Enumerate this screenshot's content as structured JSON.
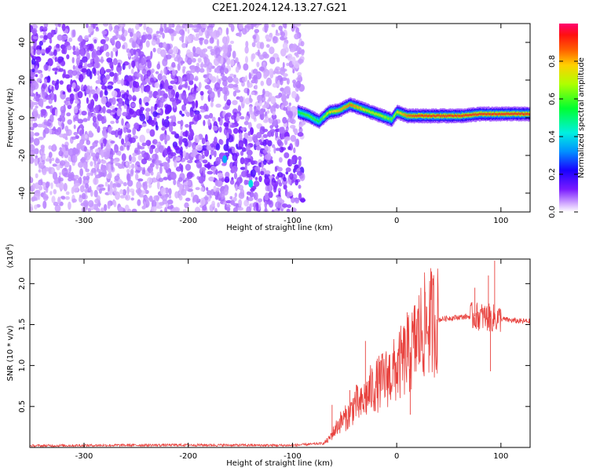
{
  "title": "C2E1.2024.124.13.27.G21",
  "chart_data": [
    {
      "type": "heatmap",
      "xlabel": "Height of straight line (km)",
      "ylabel": "Frequency (Hz)",
      "xlim": [
        -352,
        128
      ],
      "ylim": [
        -50,
        50
      ],
      "x_ticks": [
        -300,
        -200,
        -100,
        0,
        100
      ],
      "x_tick_labels": [
        "-300",
        "-200",
        "-100",
        "0",
        "100"
      ],
      "y_ticks": [
        -40,
        -20,
        0,
        20,
        40
      ],
      "y_tick_labels": [
        "-40",
        "-20",
        "0",
        "20",
        "40"
      ],
      "noise_region": {
        "x_range": [
          -352,
          -90
        ],
        "y_range": [
          -50,
          50
        ],
        "typical_amplitude": 0.1
      },
      "signal_ridge": {
        "x": [
          -95,
          -85,
          -75,
          -65,
          -55,
          -45,
          -35,
          -25,
          -15,
          -5,
          0,
          10,
          20,
          40,
          60,
          80,
          100,
          128
        ],
        "frequency": [
          3,
          1,
          -2,
          3,
          4,
          7,
          5,
          3,
          1,
          -1,
          3,
          1,
          1,
          1,
          1,
          2,
          2,
          2
        ],
        "amplitude": [
          0.55,
          0.6,
          0.55,
          0.75,
          0.8,
          0.85,
          0.8,
          0.7,
          0.7,
          0.6,
          0.75,
          0.85,
          0.9,
          0.9,
          0.9,
          0.9,
          0.9,
          0.9
        ]
      },
      "isolated_features": [
        {
          "x": -165,
          "frequency": -22,
          "amplitude": 0.35
        },
        {
          "x": -140,
          "frequency": -35,
          "amplitude": 0.4
        }
      ],
      "grid": false
    },
    {
      "type": "line",
      "xlabel": "Height of straight line (km)",
      "ylabel": "SNR (10 * v/v)",
      "y_multiplier": "(x10",
      "y_multiplier_exp": "4",
      "y_multiplier_close": ")",
      "xlim": [
        -352,
        128
      ],
      "ylim": [
        0,
        23000
      ],
      "x_ticks": [
        -300,
        -200,
        -100,
        0,
        100
      ],
      "x_tick_labels": [
        "-300",
        "-200",
        "-100",
        "0",
        "100"
      ],
      "y_ticks": [
        5000,
        10000,
        15000,
        20000
      ],
      "y_tick_labels": [
        "0.5",
        "1.0",
        "1.5",
        "2.0"
      ],
      "series": [
        {
          "color": "#e8423e",
          "x": [
            -352,
            -300,
            -200,
            -100,
            -70,
            -65,
            -60,
            -55,
            -50,
            -45,
            -40,
            -35,
            -30,
            -25,
            -20,
            -15,
            -10,
            -5,
            0,
            5,
            10,
            15,
            20,
            25,
            30,
            35,
            40,
            45,
            50,
            60,
            70,
            80,
            90,
            100,
            110,
            120,
            128
          ],
          "y": [
            200,
            250,
            300,
            250,
            500,
            1000,
            2000,
            3000,
            3500,
            4000,
            5500,
            5000,
            6000,
            7000,
            7500,
            8000,
            8500,
            9000,
            9500,
            10500,
            11000,
            12000,
            13500,
            14500,
            15200,
            15400,
            15600,
            15700,
            15800,
            15900,
            16000,
            16000,
            15800,
            15700,
            15500,
            15400,
            15400
          ]
        }
      ],
      "spikes": [
        {
          "x": -62,
          "y": 5200
        },
        {
          "x": -45,
          "y": 7000
        },
        {
          "x": -30,
          "y": 13000
        },
        {
          "x": 10,
          "y": 16500
        },
        {
          "x": 13,
          "y": 4000
        },
        {
          "x": 75,
          "y": 19500
        },
        {
          "x": 88,
          "y": 21000
        },
        {
          "x": 94,
          "y": 22800
        },
        {
          "x": 90,
          "y": 9300
        }
      ],
      "grid": false
    }
  ],
  "colorbar": {
    "label": "Normalized spectral amplitude",
    "range": [
      0,
      1
    ],
    "ticks": [
      0.0,
      0.2,
      0.4,
      0.6,
      0.8
    ],
    "tick_labels": [
      "0.0",
      "0.2",
      "0.4",
      "0.6",
      "0.8"
    ],
    "colors": [
      "#ffffff",
      "#cc99ff",
      "#6600ff",
      "#0000ff",
      "#00ffff",
      "#00ff00",
      "#ffff00",
      "#ff7700",
      "#ff0000",
      "#ff0066"
    ]
  }
}
